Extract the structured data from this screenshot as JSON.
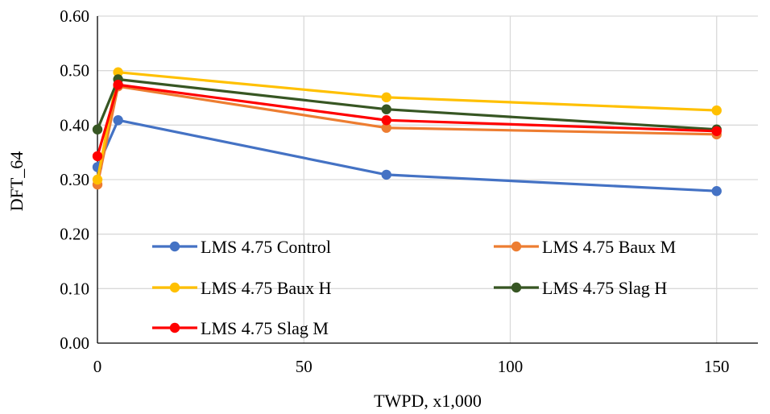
{
  "chart_data": {
    "type": "line",
    "title": "",
    "xlabel": "TWPD, x1,000",
    "ylabel": "DFT_64",
    "xlim": [
      0,
      160
    ],
    "ylim": [
      0,
      0.6
    ],
    "xticks": [
      0,
      50,
      100,
      150
    ],
    "xtick_labels": [
      "0",
      "50",
      "100",
      "150"
    ],
    "yticks": [
      0,
      0.1,
      0.2,
      0.3,
      0.4,
      0.5,
      0.6
    ],
    "ytick_labels": [
      "0.00",
      "0.10",
      "0.20",
      "0.30",
      "0.40",
      "0.50",
      "0.60"
    ],
    "grid": true,
    "legend_position": "bottom-inside",
    "series": [
      {
        "name": "LMS 4.75 Control",
        "color": "#4472C4",
        "x": [
          0,
          5,
          70,
          150
        ],
        "y": [
          0.323,
          0.409,
          0.309,
          0.279
        ]
      },
      {
        "name": "LMS 4.75 Baux M",
        "color": "#ED7D31",
        "x": [
          0,
          5,
          70,
          150
        ],
        "y": [
          0.291,
          0.471,
          0.395,
          0.383
        ]
      },
      {
        "name": "LMS 4.75 Baux H",
        "color": "#FFC000",
        "x": [
          0,
          5,
          70,
          150
        ],
        "y": [
          0.3,
          0.497,
          0.451,
          0.427
        ]
      },
      {
        "name": "LMS 4.75 Slag H",
        "color": "#375623",
        "x": [
          0,
          5,
          70,
          150
        ],
        "y": [
          0.392,
          0.484,
          0.429,
          0.392
        ]
      },
      {
        "name": "LMS 4.75 Slag M",
        "color": "#FF0000",
        "x": [
          0,
          5,
          70,
          150
        ],
        "y": [
          0.343,
          0.474,
          0.409,
          0.389
        ]
      }
    ]
  }
}
